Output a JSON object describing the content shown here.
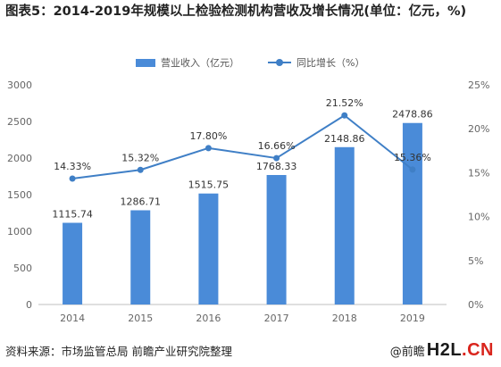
{
  "title": "图表5：2014-2019年规模以上检验检测机构营收及增长情况(单位：亿元，%)",
  "legend": {
    "bar_label": "营业收入（亿元）",
    "line_label": "同比增长（%）"
  },
  "colors": {
    "bar": "#4a8bd8",
    "line": "#3f7fc6",
    "axis_text": "#666666",
    "grid": "#d9d9d9"
  },
  "chart_data": {
    "type": "bar",
    "categories": [
      "2014",
      "2015",
      "2016",
      "2017",
      "2018",
      "2019"
    ],
    "series": [
      {
        "name": "营业收入（亿元）",
        "type": "bar",
        "axis": "left",
        "values": [
          1115.74,
          1286.71,
          1515.75,
          1768.33,
          2148.86,
          2478.86
        ],
        "labels": [
          "1115.74",
          "1286.71",
          "1515.75",
          "1768.33",
          "2148.86",
          "2478.86"
        ]
      },
      {
        "name": "同比增长（%）",
        "type": "line",
        "axis": "right",
        "values": [
          14.33,
          15.32,
          17.8,
          16.66,
          21.52,
          15.36
        ],
        "labels": [
          "14.33%",
          "15.32%",
          "17.80%",
          "16.66%",
          "21.52%",
          "15.36%"
        ]
      }
    ],
    "y_left": {
      "ylim": [
        0,
        3000
      ],
      "ticks": [
        "0",
        "500",
        "1000",
        "1500",
        "2000",
        "2500",
        "3000"
      ]
    },
    "y_right": {
      "ylim": [
        0,
        25
      ],
      "ticks": [
        "0%",
        "5%",
        "10%",
        "15%",
        "20%",
        "25%"
      ]
    },
    "grid": false,
    "legend_position": "top"
  },
  "footer": {
    "source": "资料来源：市场监管总局 前瞻产业研究院整理",
    "brand_prefix": "@前瞻",
    "brand_logo_main": "H2L",
    "brand_logo_suffix": ".CN"
  }
}
